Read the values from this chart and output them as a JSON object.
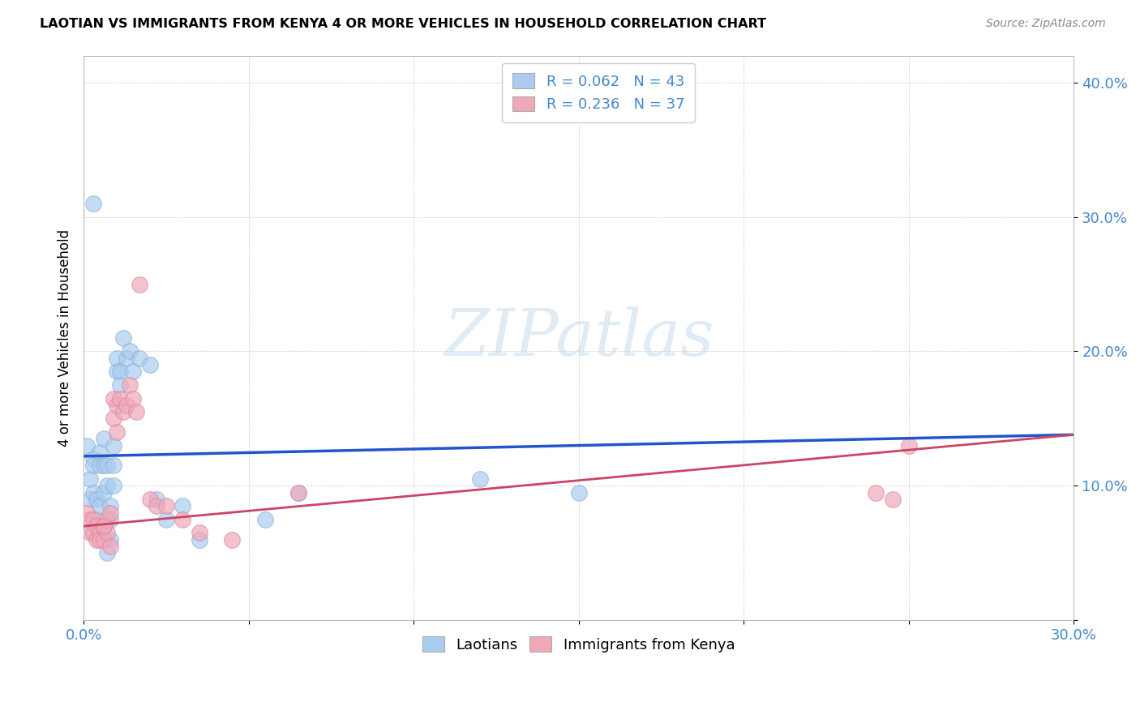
{
  "title": "LAOTIAN VS IMMIGRANTS FROM KENYA 4 OR MORE VEHICLES IN HOUSEHOLD CORRELATION CHART",
  "source": "Source: ZipAtlas.com",
  "ylabel": "4 or more Vehicles in Household",
  "xlabel": "",
  "xlim": [
    0.0,
    0.3
  ],
  "ylim": [
    0.0,
    0.42
  ],
  "xticks": [
    0.0,
    0.05,
    0.1,
    0.15,
    0.2,
    0.25,
    0.3
  ],
  "yticks": [
    0.0,
    0.1,
    0.2,
    0.3,
    0.4
  ],
  "xticklabels": [
    "0.0%",
    "",
    "",
    "",
    "",
    "",
    "30.0%"
  ],
  "yticklabels": [
    "",
    "10.0%",
    "20.0%",
    "30.0%",
    "40.0%"
  ],
  "watermark_zip": "ZIP",
  "watermark_atlas": "atlas",
  "laotians_color": "#aaccee",
  "kenya_color": "#f0a8b8",
  "laotians_line_color": "#2255cc",
  "kenya_line_color": "#cc4466",
  "laotians_x": [
    0.001,
    0.002,
    0.002,
    0.003,
    0.003,
    0.003,
    0.004,
    0.004,
    0.005,
    0.005,
    0.005,
    0.006,
    0.006,
    0.006,
    0.007,
    0.007,
    0.008,
    0.008,
    0.008,
    0.009,
    0.009,
    0.009,
    0.01,
    0.01,
    0.011,
    0.011,
    0.012,
    0.013,
    0.014,
    0.015,
    0.017,
    0.02,
    0.022,
    0.025,
    0.03,
    0.035,
    0.055,
    0.065,
    0.12,
    0.15,
    0.003,
    0.005,
    0.007
  ],
  "laotians_y": [
    0.13,
    0.09,
    0.105,
    0.12,
    0.115,
    0.095,
    0.09,
    0.075,
    0.125,
    0.115,
    0.085,
    0.135,
    0.115,
    0.095,
    0.115,
    0.1,
    0.085,
    0.075,
    0.06,
    0.13,
    0.115,
    0.1,
    0.185,
    0.195,
    0.185,
    0.175,
    0.21,
    0.195,
    0.2,
    0.185,
    0.195,
    0.19,
    0.09,
    0.075,
    0.085,
    0.06,
    0.075,
    0.095,
    0.105,
    0.095,
    0.31,
    0.07,
    0.05
  ],
  "kenya_x": [
    0.001,
    0.002,
    0.002,
    0.003,
    0.003,
    0.004,
    0.004,
    0.005,
    0.005,
    0.006,
    0.006,
    0.007,
    0.007,
    0.008,
    0.008,
    0.009,
    0.009,
    0.01,
    0.01,
    0.011,
    0.012,
    0.013,
    0.014,
    0.015,
    0.016,
    0.017,
    0.02,
    0.022,
    0.025,
    0.03,
    0.035,
    0.045,
    0.065,
    0.24,
    0.245,
    0.25,
    0.006
  ],
  "kenya_y": [
    0.08,
    0.075,
    0.065,
    0.065,
    0.075,
    0.06,
    0.07,
    0.065,
    0.06,
    0.07,
    0.06,
    0.065,
    0.075,
    0.08,
    0.055,
    0.165,
    0.15,
    0.16,
    0.14,
    0.165,
    0.155,
    0.16,
    0.175,
    0.165,
    0.155,
    0.25,
    0.09,
    0.085,
    0.085,
    0.075,
    0.065,
    0.06,
    0.095,
    0.095,
    0.09,
    0.13,
    0.07
  ],
  "lao_line_x0": 0.0,
  "lao_line_y0": 0.122,
  "lao_line_x1": 0.3,
  "lao_line_y1": 0.138,
  "ken_line_x0": 0.0,
  "ken_line_y0": 0.07,
  "ken_line_x1": 0.3,
  "ken_line_y1": 0.138
}
